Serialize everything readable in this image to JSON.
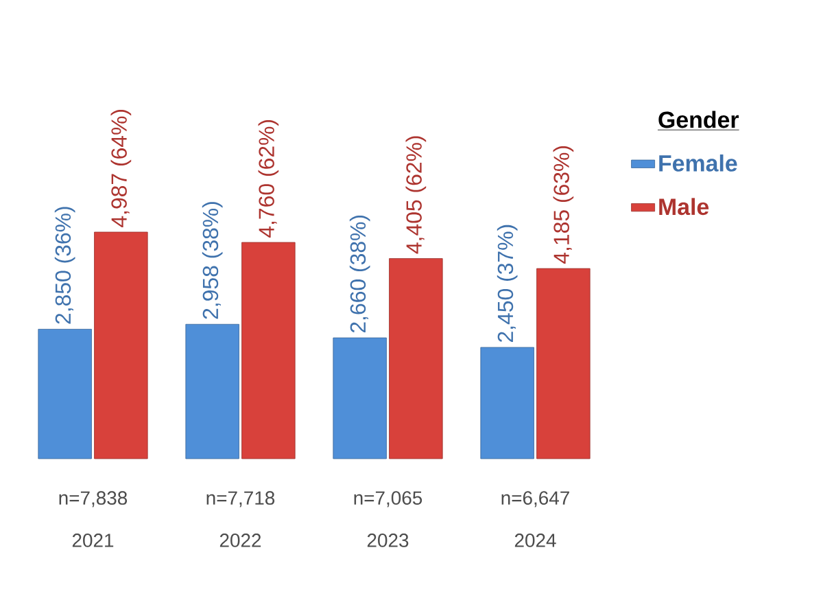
{
  "chart_data": {
    "type": "bar",
    "categories": [
      "2021",
      "2022",
      "2023",
      "2024"
    ],
    "annotations": [
      "n=7,838",
      "n=7,718",
      "n=7,065",
      "n=6,647"
    ],
    "legend_title": "Gender",
    "legend": "right",
    "series": [
      {
        "name": "Female",
        "color": "#4f8fd8",
        "values": [
          2850,
          2958,
          2660,
          2450
        ],
        "value_labels": [
          "2,850 (36%)",
          "2,958 (38%)",
          "2,660 (38%)",
          "2,450 (37%)"
        ]
      },
      {
        "name": "Male",
        "color": "#d8413b",
        "values": [
          4987,
          4760,
          4405,
          4185
        ],
        "value_labels": [
          "4,987 (64%)",
          "4,760 (62%)",
          "4,405 (62%)",
          "4,185 (63%)"
        ]
      }
    ]
  }
}
